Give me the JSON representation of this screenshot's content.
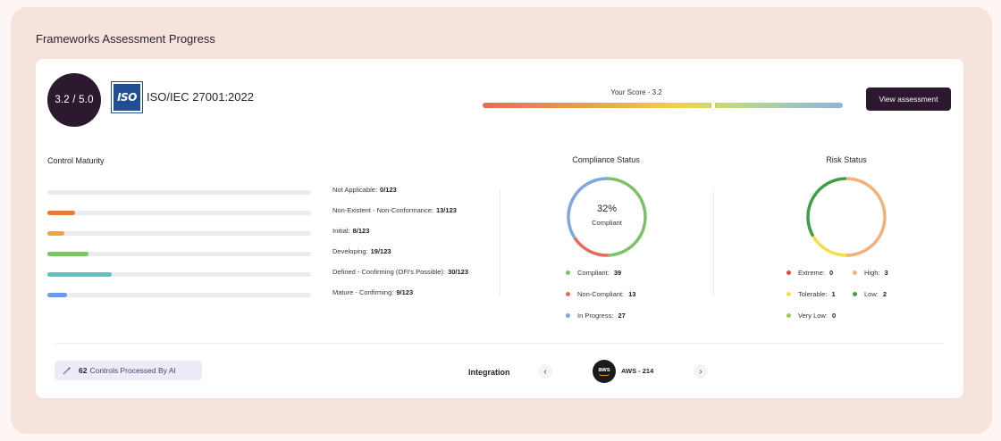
{
  "section_title": "Frameworks Assessment Progress",
  "framework": {
    "score_display": "3.2 / 5.0",
    "logo_text": "ISO",
    "name": "ISO/IEC 27001:2022",
    "your_score_label": "Your Score - 3.2",
    "score": 3.2,
    "score_max": 5.0,
    "view_button": "View assessment"
  },
  "control_maturity": {
    "title": "Control Maturity",
    "total": 123,
    "items": [
      {
        "label": "Not Applicable:",
        "value_text": "0/123",
        "count": 0,
        "color": "#d9d6dc"
      },
      {
        "label": "Non-Existent - Non-Conformance:",
        "value_text": "13/123",
        "count": 13,
        "color": "#e47a3c"
      },
      {
        "label": "Initial:",
        "value_text": "8/123",
        "count": 8,
        "color": "#f0a43a"
      },
      {
        "label": "Developing:",
        "value_text": "19/123",
        "count": 19,
        "color": "#7cc26a"
      },
      {
        "label": "Defined - Confirming (OFI's Possible):",
        "value_text": "30/123",
        "count": 30,
        "color": "#5cc2c0"
      },
      {
        "label": "Mature - Confirming:",
        "value_text": "9/123",
        "count": 9,
        "color": "#6b9be0"
      }
    ]
  },
  "compliance_status": {
    "title": "Compliance Status",
    "center_pct": "32%",
    "center_label": "Compliant",
    "segments": [
      {
        "label": "Compliant:",
        "value": 39,
        "color": "#7cc26a"
      },
      {
        "label": "Non-Compliant:",
        "value": 13,
        "color": "#e46b5a"
      },
      {
        "label": "In Progress:",
        "value": 27,
        "color": "#7fa6de"
      }
    ]
  },
  "risk_status": {
    "title": "Risk Status",
    "segments": [
      {
        "label": "Extreme:",
        "value": 0,
        "color": "#e04b3a"
      },
      {
        "label": "High:",
        "value": 3,
        "color": "#f0b27a"
      },
      {
        "label": "Tolerable:",
        "value": 1,
        "color": "#f2e04a"
      },
      {
        "label": "Low:",
        "value": 2,
        "color": "#3f9e4a"
      },
      {
        "label": "Very Low:",
        "value": 0,
        "color": "#9acd4a"
      }
    ]
  },
  "footer": {
    "ai_count": "62",
    "ai_label": "Controls Processed By AI",
    "integration_label": "Integration",
    "prev_icon": "chevron-left-icon",
    "next_icon": "chevron-right-icon",
    "aws_logo_text": "aws",
    "aws_label": "AWS - 214"
  }
}
